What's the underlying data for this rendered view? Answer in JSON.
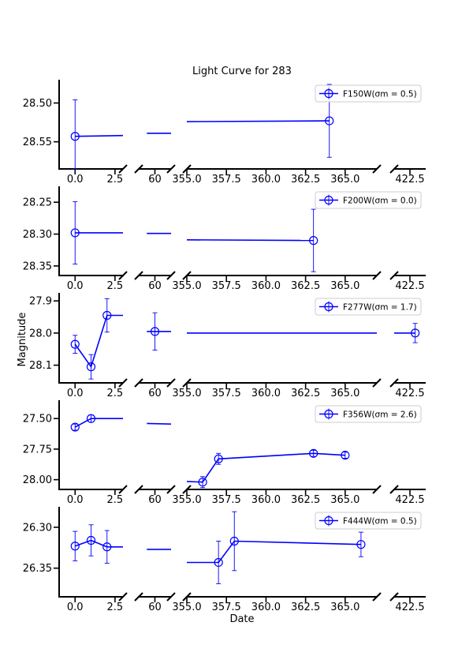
{
  "chart_data": {
    "type": "line",
    "title": "Light Curve for 283",
    "xlabel": "Date",
    "ylabel": "Magnitude",
    "y_inverted": true,
    "line_color": "#0000ff",
    "x_segments": [
      {
        "range": [
          -1,
          3
        ],
        "ticks": [
          0.0,
          2.5
        ],
        "tick_labels": [
          "0.0",
          "2.5"
        ]
      },
      {
        "range": [
          58,
          62
        ],
        "ticks": [
          60
        ],
        "tick_labels": [
          "60"
        ]
      },
      {
        "range": [
          355,
          367
        ],
        "ticks": [
          355.0,
          357.5,
          360.0,
          362.5,
          365.0
        ],
        "tick_labels": [
          "355.0",
          "357.5",
          "360.0",
          "362.5",
          "365.0"
        ]
      },
      {
        "range": [
          421,
          424
        ],
        "ticks": [
          422.5
        ],
        "tick_labels": [
          "422.5"
        ]
      }
    ],
    "panels": [
      {
        "legend": "F150W(σm = 0.5)",
        "ylim": [
          28.585,
          28.47
        ],
        "yticks": [
          28.5,
          28.55
        ],
        "ytick_labels": [
          "28.50",
          "28.55"
        ],
        "segment_lines": [
          [
            [
              0,
              28.543
            ],
            [
              3,
              28.542
            ]
          ],
          [
            [
              59,
              28.539
            ],
            [
              62,
              28.539
            ]
          ],
          [
            [
              355,
              28.524
            ],
            [
              364,
              28.523
            ]
          ]
        ],
        "points": [
          {
            "x": 0,
            "y": 28.543,
            "err": 0.047
          },
          {
            "x": 364,
            "y": 28.523,
            "err": 0.047
          }
        ]
      },
      {
        "legend": "F200W(σm = 0.0)",
        "ylim": [
          28.365,
          28.225
        ],
        "yticks": [
          28.25,
          28.3,
          28.35
        ],
        "ytick_labels": [
          "28.25",
          "28.30",
          "28.35"
        ],
        "segment_lines": [
          [
            [
              0,
              28.298
            ],
            [
              3,
              28.298
            ]
          ],
          [
            [
              59,
              28.299
            ],
            [
              62,
              28.299
            ]
          ],
          [
            [
              355,
              28.309
            ],
            [
              363,
              28.31
            ]
          ]
        ],
        "points": [
          {
            "x": 0,
            "y": 28.298,
            "err": 0.049
          },
          {
            "x": 363,
            "y": 28.31,
            "err": 0.049
          }
        ]
      },
      {
        "legend": "F277W(σm = 1.7)",
        "ylim": [
          28.155,
          27.875
        ],
        "yticks": [
          27.9,
          28.0,
          28.1
        ],
        "ytick_labels": [
          "27.9",
          "28.0",
          "28.1"
        ],
        "segment_lines": [
          [
            [
              0,
              28.035
            ],
            [
              1,
              28.105
            ],
            [
              2,
              27.945
            ],
            [
              3,
              27.945
            ]
          ],
          [
            [
              59,
              27.995
            ],
            [
              62,
              27.995
            ]
          ],
          [
            [
              355,
              28.0
            ],
            [
              367,
              28.0
            ]
          ],
          [
            [
              421,
              28.0
            ],
            [
              423,
              28.0
            ]
          ]
        ],
        "points": [
          {
            "x": 0,
            "y": 28.035,
            "err": 0.028
          },
          {
            "x": 1,
            "y": 28.105,
            "err": 0.038
          },
          {
            "x": 2,
            "y": 27.945,
            "err": 0.052
          },
          {
            "x": 60,
            "y": 27.995,
            "err": 0.058
          },
          {
            "x": 423,
            "y": 28.0,
            "err": 0.03
          }
        ]
      },
      {
        "legend": "F356W(σm = 2.6)",
        "ylim": [
          28.08,
          27.35
        ],
        "yticks": [
          27.5,
          27.75,
          28.0
        ],
        "ytick_labels": [
          "27.50",
          "27.75",
          "28.00"
        ],
        "segment_lines": [
          [
            [
              0,
              27.57
            ],
            [
              1,
              27.5
            ],
            [
              3,
              27.5
            ]
          ],
          [
            [
              59,
              27.54
            ],
            [
              62,
              27.545
            ]
          ],
          [
            [
              355,
              28.015
            ],
            [
              356,
              28.02
            ],
            [
              357,
              27.83
            ],
            [
              363,
              27.785
            ],
            [
              365,
              27.8
            ]
          ]
        ],
        "points": [
          {
            "x": 0,
            "y": 27.57,
            "err": 0.025
          },
          {
            "x": 1,
            "y": 27.5,
            "err": 0.03
          },
          {
            "x": 356,
            "y": 28.02,
            "err": 0.045
          },
          {
            "x": 357,
            "y": 27.83,
            "err": 0.045
          },
          {
            "x": 363,
            "y": 27.785,
            "err": 0.025
          },
          {
            "x": 365,
            "y": 27.8,
            "err": 0.025
          }
        ]
      },
      {
        "legend": "F444W(σm = 0.5)",
        "ylim": [
          26.385,
          26.275
        ],
        "yticks": [
          26.3,
          26.35
        ],
        "ytick_labels": [
          "26.30",
          "26.35"
        ],
        "segment_lines": [
          [
            [
              0,
              26.323
            ],
            [
              1,
              26.316
            ],
            [
              2,
              26.324
            ],
            [
              3,
              26.324
            ]
          ],
          [
            [
              59,
              26.327
            ],
            [
              62,
              26.327
            ]
          ],
          [
            [
              355,
              26.343
            ],
            [
              357,
              26.343
            ],
            [
              358,
              26.317
            ],
            [
              366,
              26.321
            ]
          ]
        ],
        "points": [
          {
            "x": 0,
            "y": 26.323,
            "err": 0.018
          },
          {
            "x": 1,
            "y": 26.316,
            "err": 0.019
          },
          {
            "x": 2,
            "y": 26.324,
            "err": 0.02
          },
          {
            "x": 357,
            "y": 26.343,
            "err": 0.026
          },
          {
            "x": 358,
            "y": 26.317,
            "err": 0.036
          },
          {
            "x": 366,
            "y": 26.321,
            "err": 0.015
          }
        ]
      }
    ]
  }
}
